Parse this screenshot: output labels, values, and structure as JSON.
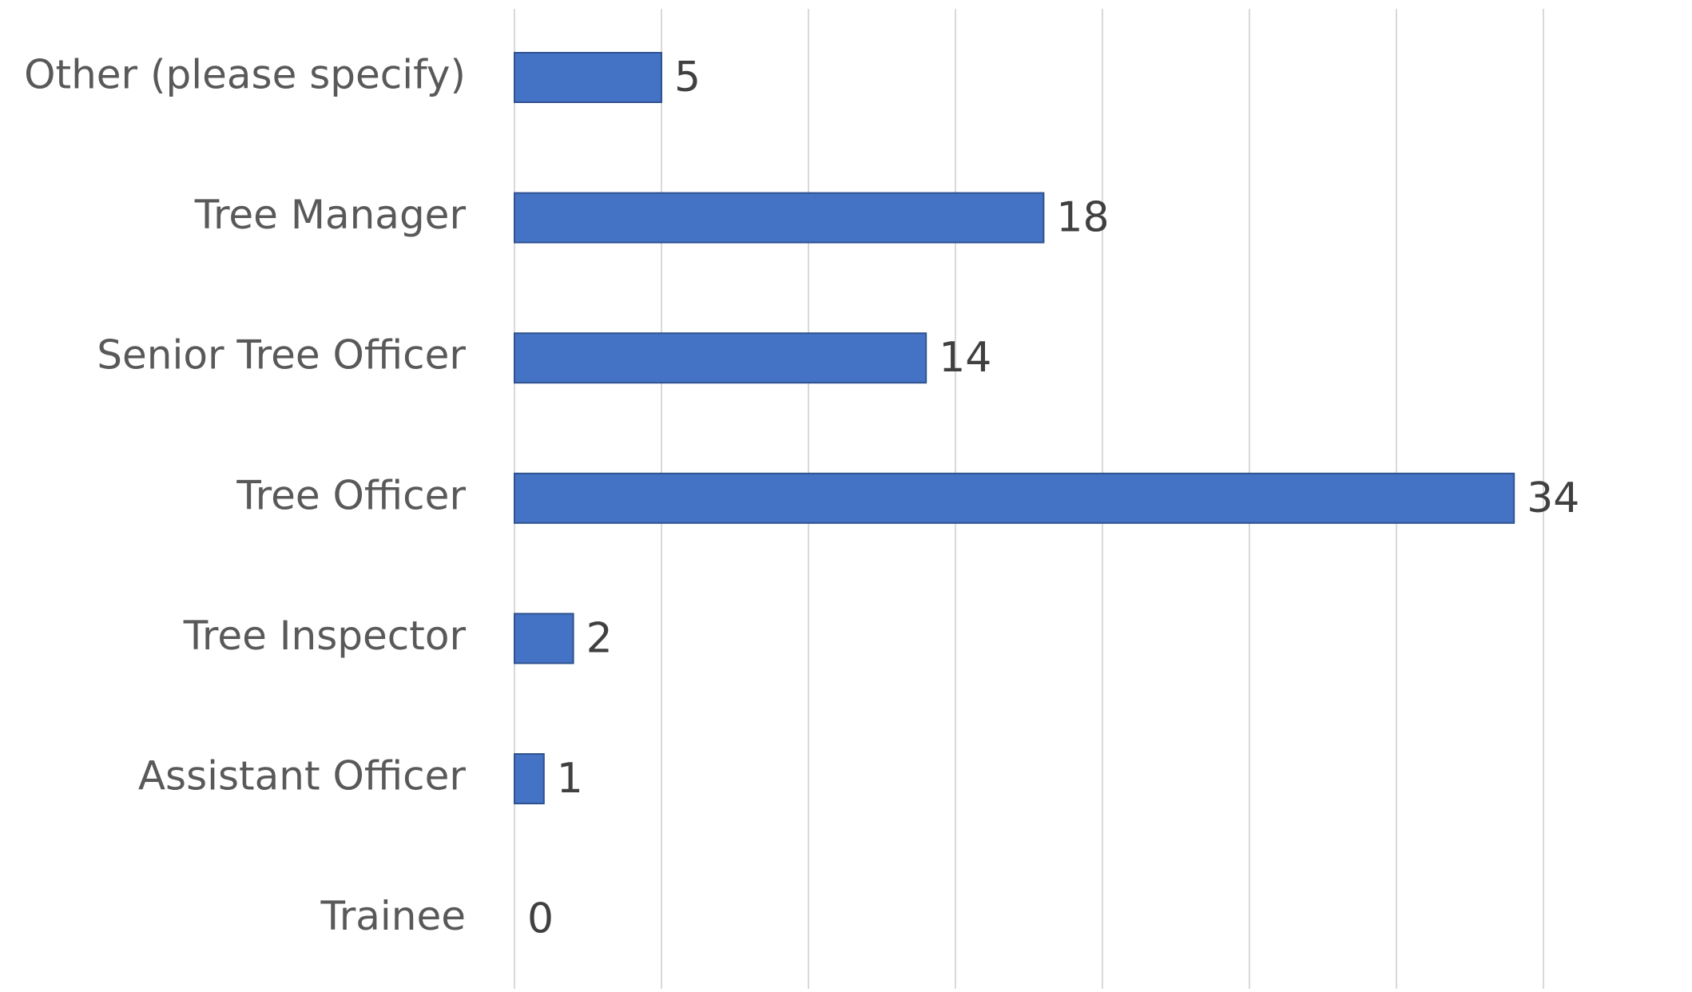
{
  "chart_data": {
    "type": "hbar",
    "categories": [
      "Other (please specify)",
      "Tree Manager",
      "Senior Tree Officer",
      "Tree Officer",
      "Tree Inspector",
      "Assistant Officer",
      "Trainee"
    ],
    "values": [
      5,
      18,
      14,
      34,
      2,
      1,
      0
    ],
    "color": "#4472c4",
    "xlim": [
      0,
      35
    ],
    "xticks": [
      0,
      5,
      10,
      15,
      20,
      25,
      30,
      35
    ],
    "grid": true
  }
}
